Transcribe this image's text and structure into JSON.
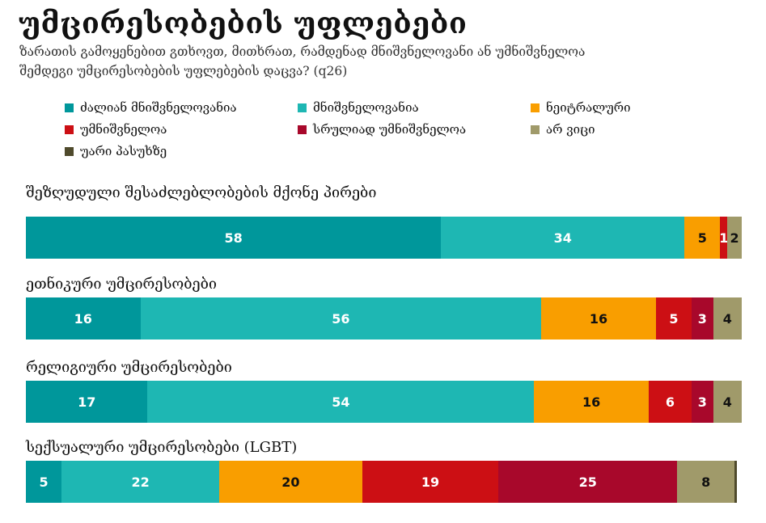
{
  "title": "უმცირესობების უფლებები",
  "subtitle": "ზარათის გამოყენებით გთხოვთ, მითხრათ, რამდენად მნიშვნელოვანი ან უმნიშვნელოა შემდეგი უმცირესობების უფლებების დაცვა? (q26)",
  "colors": {
    "very_important": "#00979b",
    "important": "#1eb7b3",
    "neutral": "#f99e00",
    "unimportant": "#cc0f14",
    "totally_unimportant": "#a8082b",
    "dont_know": "#a09a6a",
    "refused": "#4f4a2c"
  },
  "chart_data": {
    "type": "bar",
    "orientation": "horizontal",
    "stacked": true,
    "xlim": [
      0,
      100
    ],
    "legend_position": "top",
    "grid": false,
    "categories": [
      "შეზღუდული შესაძლებლობების მქონე პირები",
      "ეთნიკური უმცირესობები",
      "რელიგიური უმცირესობები",
      "სექსუალური უმცირესობები (LGBT)"
    ],
    "series": [
      {
        "name": "ძალიან მნიშვნელოვანია",
        "color": "#00979b",
        "text_color": "#ffffff",
        "values": [
          58,
          16,
          17,
          5
        ]
      },
      {
        "name": "მნიშვნელოვანია",
        "color": "#1eb7b3",
        "text_color": "#ffffff",
        "values": [
          34,
          56,
          54,
          22
        ]
      },
      {
        "name": "ნეიტრალური",
        "color": "#f99e00",
        "text_color": "#111111",
        "values": [
          5,
          16,
          16,
          20
        ]
      },
      {
        "name": "უმნიშვნელოა",
        "color": "#cc0f14",
        "text_color": "#ffffff",
        "values": [
          1,
          5,
          6,
          19
        ]
      },
      {
        "name": "სრულიად უმნიშვნელოა",
        "color": "#a8082b",
        "text_color": "#ffffff",
        "values": [
          0,
          3,
          3,
          25
        ]
      },
      {
        "name": "არ ვიცი",
        "color": "#a09a6a",
        "text_color": "#111111",
        "values": [
          2,
          4,
          4,
          8
        ]
      },
      {
        "name": "უარი პასუხზე",
        "color": "#4f4a2c",
        "text_color": "#ffffff",
        "values": [
          0,
          0,
          0,
          0.3
        ]
      }
    ],
    "data_labels": [
      [
        "58",
        "34",
        "5",
        "1",
        "",
        "2",
        ""
      ],
      [
        "16",
        "56",
        "16",
        "5",
        "3",
        "4",
        ""
      ],
      [
        "17",
        "54",
        "16",
        "6",
        "3",
        "4",
        ""
      ],
      [
        "5",
        "22",
        "20",
        "19",
        "25",
        "8",
        ""
      ]
    ]
  }
}
